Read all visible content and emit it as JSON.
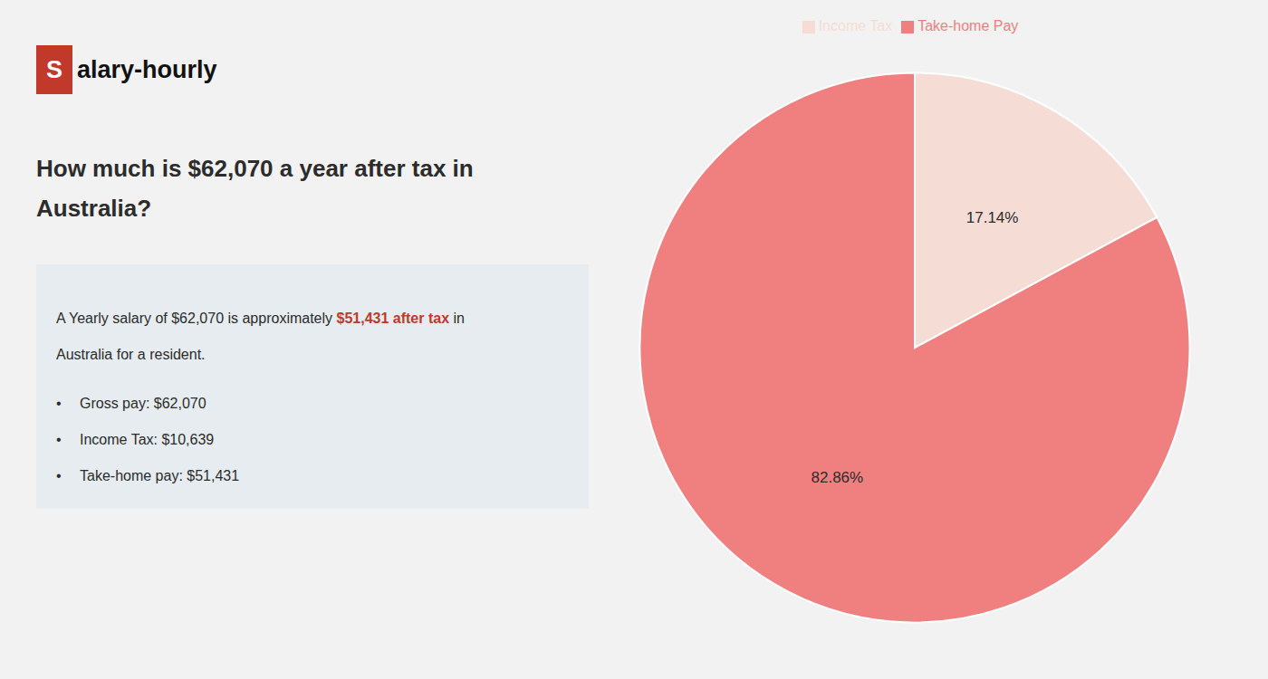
{
  "chart_data": {
    "type": "pie",
    "title": [
      "How much is $62,070 a year after tax in",
      "Australia?"
    ],
    "categories": [
      "Income Tax",
      "Take-home Pay"
    ],
    "values": [
      17.14,
      82.86
    ],
    "value_labels": [
      "17.14%",
      "82.86%"
    ],
    "colors": [
      "#f5ddd5",
      "#f08080"
    ],
    "data_labels": true,
    "legend": "top",
    "annotations": [
      [
        {
          "text": "S",
          "color": "#c0392b"
        },
        {
          "text": "alary-hourly"
        }
      ],
      [
        {
          "text": "A Yearly salary of $62,070 is approximately "
        },
        {
          "text": "$51,431 after tax",
          "color": "#c0392b"
        },
        {
          "text": " in"
        }
      ],
      [
        {
          "text": "Australia for a resident."
        }
      ],
      [
        {
          "text": "•"
        },
        {
          "text": "Gross pay: $62,070"
        }
      ],
      [
        {
          "text": "•"
        },
        {
          "text": "Income Tax: $10,639"
        }
      ],
      [
        {
          "text": "•"
        },
        {
          "text": "Take-home pay: $51,431"
        }
      ]
    ]
  }
}
